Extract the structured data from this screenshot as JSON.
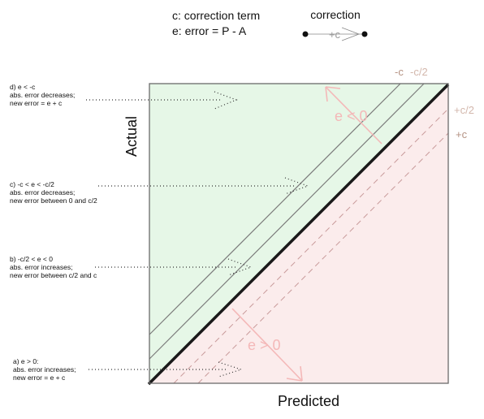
{
  "legend": {
    "c_def": "c: correction term",
    "e_def": "e: error = P - A",
    "correction_title": "correction",
    "correction_arrow_label": "+c"
  },
  "axes": {
    "x_label": "Predicted",
    "y_label": "Actual"
  },
  "offset_labels": {
    "minus_c": "-c",
    "minus_c_half": "-c/2",
    "plus_c_half": "+c/2",
    "plus_c": "+c"
  },
  "region_labels": {
    "e_negative": "e < 0",
    "e_positive": "e > 0"
  },
  "cases": [
    {
      "id": "d",
      "lines": [
        "d) e < -c",
        "abs. error decreases;",
        "new error = e + c"
      ]
    },
    {
      "id": "c",
      "lines": [
        "c) -c < e < -c/2",
        "abs. error decreases;",
        "new error between 0 and c/2"
      ]
    },
    {
      "id": "b",
      "lines": [
        "b) -c/2 < e < 0",
        "abs. error increases;",
        "new error between c/2 and c"
      ]
    },
    {
      "id": "a",
      "lines": [
        "a) e > 0:",
        "abs. error increases;",
        "new error = e + c"
      ]
    }
  ],
  "colors": {
    "green_region": "#e6f7e7",
    "pink_region": "#fbecec",
    "diagonal": "#1a1a1a",
    "gray_line": "#7a7a7a",
    "pink_line": "#c89a9a",
    "label_tan": "#b59384",
    "arrow_pink": "#f4b8b8"
  }
}
